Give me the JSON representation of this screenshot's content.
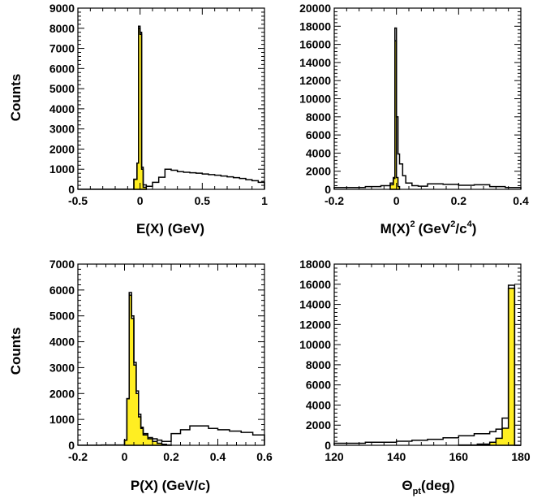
{
  "colors": {
    "fill": "#ffee22",
    "line": "#000000",
    "background": "#ffffff"
  },
  "chart_data": [
    {
      "type": "histogram",
      "panel": "top-left",
      "xlabel": "E(X) (GeV)",
      "ylabel": "Counts",
      "xlim": [
        -0.5,
        1.0
      ],
      "ylim": [
        0,
        9000
      ],
      "xticks": [
        -0.5,
        0,
        0.5,
        1
      ],
      "xtick_labels": [
        "-0.5",
        "0",
        "0.5",
        "1"
      ],
      "yticks": [
        0,
        1000,
        2000,
        3000,
        4000,
        5000,
        6000,
        7000,
        8000,
        9000
      ],
      "ytick_labels": [
        "0",
        "1000",
        "2000",
        "3000",
        "4000",
        "5000",
        "6000",
        "7000",
        "8000",
        "9000"
      ],
      "series": [
        {
          "style": "filled",
          "bins": [
            -0.05,
            -0.025,
            -0.0125,
            0.0,
            0.0125,
            0.025,
            0.05
          ],
          "values": [
            500,
            1300,
            8000,
            7700,
            1000,
            100
          ]
        },
        {
          "style": "outline",
          "bins": [
            -0.5,
            -0.05,
            -0.025,
            -0.0125,
            0.0,
            0.0125,
            0.025,
            0.05,
            0.1,
            0.15,
            0.2,
            0.25,
            0.3,
            0.35,
            0.4,
            0.45,
            0.5,
            0.55,
            0.6,
            0.65,
            0.7,
            0.75,
            0.8,
            0.85,
            0.9,
            0.95,
            1.0
          ],
          "values": [
            5,
            500,
            1300,
            8100,
            7800,
            1100,
            220,
            150,
            350,
            600,
            1000,
            950,
            880,
            850,
            820,
            800,
            760,
            730,
            700,
            660,
            620,
            580,
            540,
            480,
            430,
            350
          ]
        }
      ]
    },
    {
      "type": "histogram",
      "panel": "top-right",
      "xlabel": "M(X)",
      "xlabel_sup": "2",
      "xlabel_unit": "(GeV",
      "xlabel_unit_sup": "2",
      "xlabel_unit_mid": "/c",
      "xlabel_unit_sup2": "4",
      "xlabel_unit_end": ")",
      "xlim": [
        -0.2,
        0.4
      ],
      "ylim": [
        0,
        20000
      ],
      "xticks": [
        -0.2,
        0,
        0.2,
        0.4
      ],
      "xtick_labels": [
        "-0.2",
        "0",
        "0.2",
        "0.4"
      ],
      "yticks": [
        0,
        2000,
        4000,
        6000,
        8000,
        10000,
        12000,
        14000,
        16000,
        18000,
        20000
      ],
      "ytick_labels": [
        "0",
        "2000",
        "4000",
        "6000",
        "8000",
        "10000",
        "12000",
        "14000",
        "16000",
        "18000",
        "20000"
      ],
      "series": [
        {
          "style": "filled",
          "bins": [
            -0.02,
            -0.01,
            -0.005,
            0.0,
            0.005,
            0.01
          ],
          "values": [
            500,
            1200,
            16400,
            1300,
            300
          ]
        },
        {
          "style": "outline",
          "bins": [
            -0.2,
            -0.1,
            -0.05,
            -0.02,
            -0.01,
            -0.005,
            0.0,
            0.005,
            0.01,
            0.02,
            0.03,
            0.05,
            0.07,
            0.1,
            0.15,
            0.2,
            0.25,
            0.3,
            0.35,
            0.4
          ],
          "values": [
            200,
            300,
            400,
            700,
            1300,
            17800,
            8000,
            3900,
            2800,
            1500,
            700,
            400,
            350,
            600,
            550,
            450,
            500,
            300,
            200
          ]
        }
      ]
    },
    {
      "type": "histogram",
      "panel": "bottom-left",
      "xlabel": "P(X) (GeV/c)",
      "ylabel": "Counts",
      "xlim": [
        -0.2,
        0.6
      ],
      "ylim": [
        0,
        7000
      ],
      "xticks": [
        -0.2,
        0,
        0.2,
        0.4,
        0.6
      ],
      "xtick_labels": [
        "-0.2",
        "0",
        "0.2",
        "0.4",
        "0.6"
      ],
      "yticks": [
        0,
        1000,
        2000,
        3000,
        4000,
        5000,
        6000,
        7000
      ],
      "ytick_labels": [
        "0",
        "1000",
        "2000",
        "3000",
        "4000",
        "5000",
        "6000",
        "7000"
      ],
      "series": [
        {
          "style": "filled",
          "bins": [
            0.0,
            0.01,
            0.02,
            0.03,
            0.04,
            0.05,
            0.06,
            0.07,
            0.08,
            0.1,
            0.12,
            0.14,
            0.16,
            0.18,
            0.2
          ],
          "values": [
            200,
            1800,
            5800,
            4900,
            3100,
            2000,
            1100,
            650,
            400,
            250,
            150,
            80,
            40,
            10
          ]
        },
        {
          "style": "outline",
          "bins": [
            -0.2,
            -0.1,
            0.0,
            0.01,
            0.02,
            0.03,
            0.04,
            0.05,
            0.06,
            0.07,
            0.08,
            0.1,
            0.12,
            0.14,
            0.16,
            0.18,
            0.2,
            0.24,
            0.28,
            0.32,
            0.36,
            0.4,
            0.45,
            0.5,
            0.55,
            0.6
          ],
          "values": [
            5,
            10,
            200,
            1800,
            5900,
            5000,
            3200,
            2100,
            1200,
            700,
            450,
            300,
            250,
            200,
            150,
            150,
            450,
            600,
            750,
            750,
            650,
            600,
            550,
            500,
            400
          ]
        }
      ]
    },
    {
      "type": "histogram",
      "panel": "bottom-right",
      "xlabel": "Θ",
      "xlabel_sub": "pt",
      "xlabel_unit": "(deg)",
      "xlim": [
        120,
        180
      ],
      "ylim": [
        0,
        18000
      ],
      "xticks": [
        120,
        140,
        160,
        180
      ],
      "xtick_labels": [
        "120",
        "140",
        "160",
        "180"
      ],
      "yticks": [
        0,
        2000,
        4000,
        6000,
        8000,
        10000,
        12000,
        14000,
        16000,
        18000
      ],
      "ytick_labels": [
        "0",
        "2000",
        "4000",
        "6000",
        "8000",
        "10000",
        "12000",
        "14000",
        "16000",
        "18000"
      ],
      "series": [
        {
          "style": "filled",
          "bins": [
            160,
            166,
            170,
            172,
            174,
            176,
            178,
            180
          ],
          "values": [
            30,
            120,
            300,
            700,
            1700,
            15600,
            0
          ]
        },
        {
          "style": "outline",
          "bins": [
            120,
            130,
            140,
            145,
            150,
            155,
            160,
            165,
            170,
            172,
            174,
            176,
            178,
            180
          ],
          "values": [
            200,
            300,
            400,
            500,
            600,
            750,
            950,
            1150,
            1350,
            1600,
            2700,
            15900,
            0
          ]
        }
      ]
    }
  ]
}
